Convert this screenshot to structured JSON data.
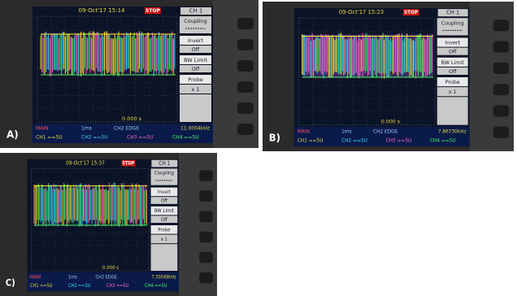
{
  "panels": [
    {
      "label": "A)",
      "timestamp": "09-Oct'17 15:14",
      "status": "STOP",
      "channel": "CH 1",
      "menu": [
        "Coupling",
        "Invert",
        "Off",
        "BW Limit",
        "Off",
        "Probe",
        "x 1"
      ],
      "trigger_time": "0.000 s",
      "footer": {
        "mode": "MAIN",
        "timebase": "1ms",
        "trigger": "CH2 EDGE",
        "frequency": "11.0004kHz",
        "channels": [
          "CH1 ==5U",
          "CH2 ==5U",
          "CH3 ==5U",
          "CH4 ==5U"
        ]
      }
    },
    {
      "label": "B)",
      "timestamp": "09-Oct'17 15:23",
      "status": "STOP",
      "channel": "CH 1",
      "menu": [
        "Coupling",
        "Invert",
        "Off",
        "BW Limit",
        "Off",
        "Probe",
        "x 1"
      ],
      "trigger_time": "0.000 s",
      "footer": {
        "mode": "MAIN",
        "timebase": "1ms",
        "trigger": "CH2 EDGE",
        "frequency": "7.86730kHz",
        "channels": [
          "CH1 ==5U",
          "CH2 ==5U",
          "CH3 ==5U",
          "CH4 ==5U"
        ]
      }
    },
    {
      "label": "C)",
      "timestamp": "09-Oct'17 15:37",
      "status": "STOP",
      "channel": "CH 1",
      "menu": [
        "Coupling",
        "Invert",
        "Off",
        "BW Limit",
        "Off",
        "Probe",
        "x 1"
      ],
      "trigger_time": "0.000 s",
      "footer": {
        "mode": "MAIN",
        "timebase": "1ms",
        "trigger": "CH2 EDGE",
        "frequency": "7.30049kHz",
        "channels": [
          "CH1 ==5U",
          "CH2 ==5U",
          "CH3 ==5U",
          "CH4 ==5U"
        ]
      }
    }
  ]
}
